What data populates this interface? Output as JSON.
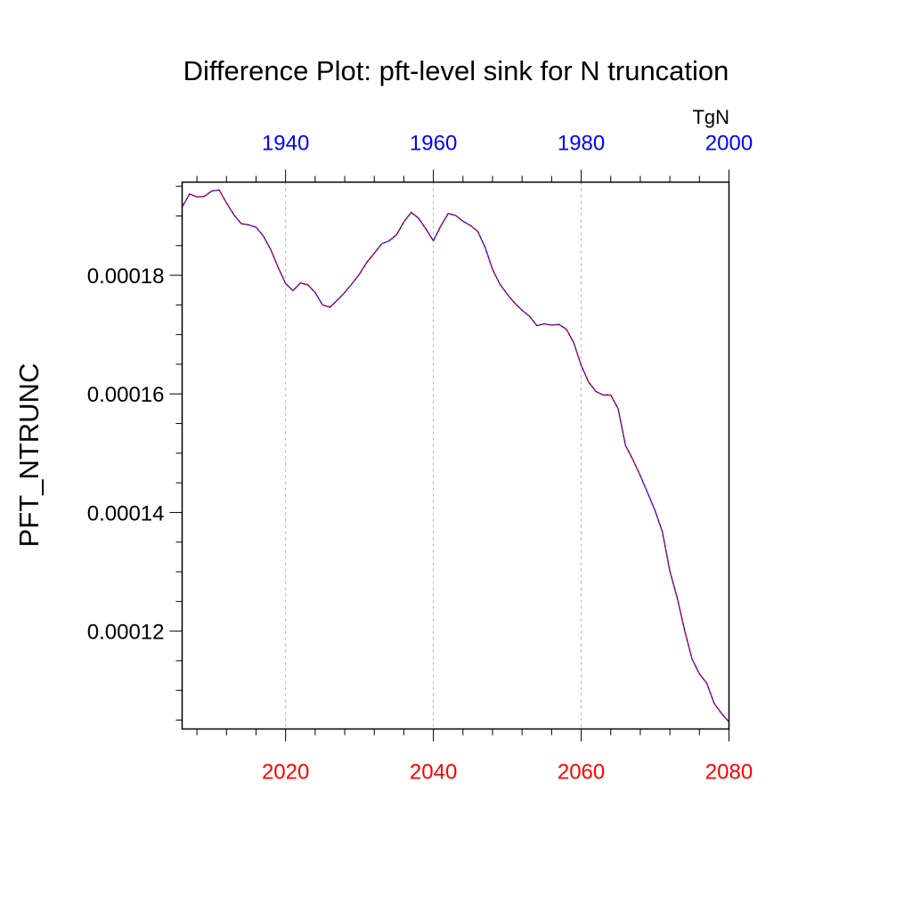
{
  "chart_data": {
    "type": "line",
    "title": "Difference Plot: pft-level sink for N truncation",
    "ylabel": "PFT_NTRUNC",
    "units": "TgN",
    "grid": "vertical-dashed",
    "xlim": [
      2006,
      2080
    ],
    "ylim": [
      0.0001035,
      0.0001957
    ],
    "x_ticks": [
      2020,
      2040,
      2060,
      2080
    ],
    "x_tick_labels": [
      "2020",
      "2040",
      "2060",
      "2080"
    ],
    "top_ticks": [
      1940,
      1960,
      1980,
      2000
    ],
    "top_tick_labels": [
      "1940",
      "1960",
      "1980",
      "2000"
    ],
    "top_axis_offset": -80,
    "y_ticks": [
      0.00012,
      0.00014,
      0.00016,
      0.00018
    ],
    "y_tick_labels": [
      "0.00012",
      "0.00014",
      "0.00016",
      "0.00018"
    ],
    "colors": {
      "bottom_axis": "#ff0000",
      "top_axis": "#0000ff",
      "line_a": "#0000ff",
      "line_b": "#ff0000",
      "grid": "#b0b0b0"
    },
    "series": [
      {
        "color": "#0000ff",
        "dash": "solid",
        "x": [
          2006,
          2007,
          2008,
          2009,
          2010,
          2011,
          2012,
          2013,
          2014,
          2015,
          2016,
          2017,
          2018,
          2019,
          2020,
          2021,
          2022,
          2023,
          2024,
          2025,
          2026,
          2027,
          2028,
          2029,
          2030,
          2031,
          2032,
          2033,
          2034,
          2035,
          2036,
          2037,
          2038,
          2039,
          2040,
          2041,
          2042,
          2043,
          2044,
          2045,
          2046,
          2047,
          2048,
          2049,
          2050,
          2051,
          2052,
          2053,
          2054,
          2055,
          2056,
          2057,
          2058,
          2059,
          2060,
          2061,
          2062,
          2063,
          2064,
          2065,
          2066,
          2067,
          2068,
          2069,
          2070,
          2071,
          2072,
          2073,
          2074,
          2075,
          2076,
          2077,
          2078,
          2079,
          2080
        ],
        "values": [
          0.0001915,
          0.0001937,
          0.0001932,
          0.0001933,
          0.0001942,
          0.0001944,
          0.0001922,
          0.0001902,
          0.0001887,
          0.0001885,
          0.0001881,
          0.0001866,
          0.0001843,
          0.0001813,
          0.0001786,
          0.0001774,
          0.0001787,
          0.0001784,
          0.0001771,
          0.000175,
          0.0001746,
          0.0001758,
          0.0001771,
          0.0001786,
          0.0001802,
          0.0001822,
          0.0001837,
          0.0001853,
          0.0001858,
          0.0001868,
          0.000189,
          0.0001906,
          0.0001896,
          0.0001878,
          0.0001858,
          0.0001883,
          0.0001904,
          0.0001901,
          0.0001891,
          0.0001884,
          0.0001874,
          0.0001847,
          0.000181,
          0.0001785,
          0.0001768,
          0.0001753,
          0.0001741,
          0.0001731,
          0.0001715,
          0.0001718,
          0.0001716,
          0.0001717,
          0.0001709,
          0.0001686,
          0.0001648,
          0.000162,
          0.0001604,
          0.0001598,
          0.0001598,
          0.0001575,
          0.0001513,
          0.0001489,
          0.0001462,
          0.0001433,
          0.0001403,
          0.0001367,
          0.0001301,
          0.0001256,
          0.0001201,
          0.0001153,
          0.0001128,
          0.0001112,
          0.0001078,
          0.0001061,
          0.0001047
        ]
      },
      {
        "color": "#ff0000",
        "dash": "dashed",
        "x": [
          2006,
          2007,
          2008,
          2009,
          2010,
          2011,
          2012,
          2013,
          2014,
          2015,
          2016,
          2017,
          2018,
          2019,
          2020,
          2021,
          2022,
          2023,
          2024,
          2025,
          2026,
          2027,
          2028,
          2029,
          2030,
          2031,
          2032,
          2033,
          2034,
          2035,
          2036,
          2037,
          2038,
          2039,
          2040,
          2041,
          2042,
          2043,
          2044,
          2045,
          2046,
          2047,
          2048,
          2049,
          2050,
          2051,
          2052,
          2053,
          2054,
          2055,
          2056,
          2057,
          2058,
          2059,
          2060,
          2061,
          2062,
          2063,
          2064,
          2065,
          2066,
          2067,
          2068,
          2069,
          2070,
          2071,
          2072,
          2073,
          2074,
          2075,
          2076,
          2077,
          2078,
          2079,
          2080
        ],
        "values": [
          0.0001915,
          0.0001937,
          0.0001932,
          0.0001933,
          0.0001942,
          0.0001944,
          0.0001922,
          0.0001902,
          0.0001887,
          0.0001885,
          0.0001881,
          0.0001866,
          0.0001843,
          0.0001813,
          0.0001786,
          0.0001774,
          0.0001787,
          0.0001784,
          0.0001771,
          0.000175,
          0.0001746,
          0.0001758,
          0.0001771,
          0.0001786,
          0.0001802,
          0.0001822,
          0.0001837,
          0.0001853,
          0.0001858,
          0.0001868,
          0.000189,
          0.0001906,
          0.0001896,
          0.0001878,
          0.0001858,
          0.0001883,
          0.0001904,
          0.0001901,
          0.0001891,
          0.0001884,
          0.0001874,
          0.0001847,
          0.000181,
          0.0001785,
          0.0001768,
          0.0001753,
          0.0001741,
          0.0001731,
          0.0001715,
          0.0001718,
          0.0001716,
          0.0001717,
          0.0001709,
          0.0001686,
          0.0001648,
          0.000162,
          0.0001604,
          0.0001598,
          0.0001598,
          0.0001575,
          0.0001513,
          0.0001489,
          0.0001462,
          0.0001433,
          0.0001403,
          0.0001367,
          0.0001301,
          0.0001256,
          0.0001201,
          0.0001153,
          0.0001128,
          0.0001112,
          0.0001078,
          0.0001061,
          0.0001047
        ]
      }
    ]
  }
}
